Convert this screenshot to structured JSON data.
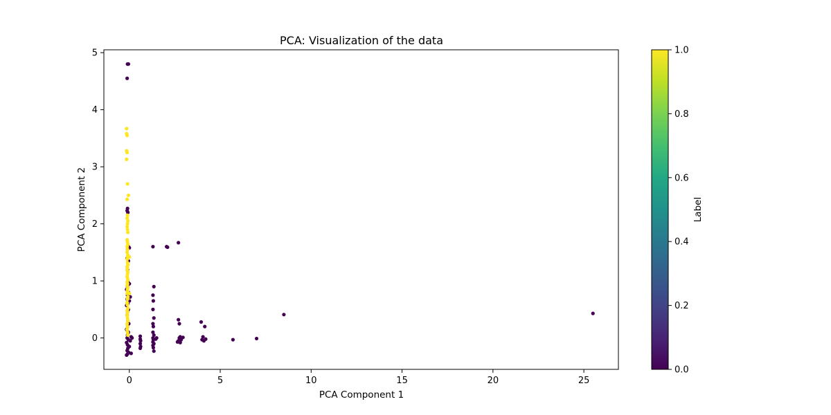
{
  "chart_data": {
    "type": "scatter",
    "title": "PCA: Visualization of the data",
    "xlabel": "PCA Component 1",
    "ylabel": "PCA Component 2",
    "xlim": [
      -1.4,
      26.9
    ],
    "ylim": [
      -0.55,
      5.05
    ],
    "xticks": [
      0,
      5,
      10,
      15,
      20,
      25
    ],
    "yticks": [
      0,
      1,
      2,
      3,
      4,
      5
    ],
    "grid": false,
    "colorbar": {
      "label": "Label",
      "range": [
        0.0,
        1.0
      ],
      "ticks": [
        "0.0",
        "0.2",
        "0.4",
        "0.6",
        "0.8",
        "1.0"
      ],
      "colormap": "viridis"
    },
    "series": [
      {
        "color": "#440154",
        "label_value": 0,
        "points": [
          [
            -0.1,
            4.8
          ],
          [
            -0.05,
            4.8
          ],
          [
            -0.12,
            4.55
          ],
          [
            -0.1,
            2.27
          ],
          [
            -0.12,
            2.23
          ],
          [
            -0.08,
            2.2
          ],
          [
            -0.05,
            1.6
          ],
          [
            0.0,
            1.58
          ],
          [
            -0.1,
            1.55
          ],
          [
            -0.12,
            1.4
          ],
          [
            -0.05,
            1.35
          ],
          [
            -0.1,
            1.2
          ],
          [
            -0.08,
            0.98
          ],
          [
            0.0,
            0.95
          ],
          [
            -0.1,
            0.9
          ],
          [
            -0.15,
            0.85
          ],
          [
            -0.05,
            0.8
          ],
          [
            -0.1,
            0.75
          ],
          [
            0.05,
            0.72
          ],
          [
            -0.12,
            0.68
          ],
          [
            0.0,
            0.65
          ],
          [
            -0.08,
            0.6
          ],
          [
            -0.15,
            0.57
          ],
          [
            -0.05,
            0.5
          ],
          [
            -0.1,
            0.45
          ],
          [
            -0.12,
            0.4
          ],
          [
            -0.08,
            0.3
          ],
          [
            -0.03,
            0.25
          ],
          [
            -0.1,
            0.2
          ],
          [
            -0.15,
            0.15
          ],
          [
            -0.05,
            0.1
          ],
          [
            -0.1,
            0.05
          ],
          [
            -0.12,
            0.0
          ],
          [
            -0.05,
            -0.03
          ],
          [
            0.05,
            -0.05
          ],
          [
            -0.15,
            -0.08
          ],
          [
            -0.1,
            -0.12
          ],
          [
            0.0,
            -0.15
          ],
          [
            -0.08,
            -0.18
          ],
          [
            -0.12,
            -0.22
          ],
          [
            -0.05,
            -0.25
          ],
          [
            -0.1,
            -0.28
          ],
          [
            -0.15,
            -0.3
          ],
          [
            0.1,
            -0.27
          ],
          [
            0.15,
            0.0
          ],
          [
            0.1,
            0.02
          ],
          [
            0.6,
            0.03
          ],
          [
            0.6,
            -0.02
          ],
          [
            0.62,
            -0.05
          ],
          [
            0.6,
            -0.1
          ],
          [
            0.62,
            -0.15
          ],
          [
            0.6,
            -0.18
          ],
          [
            1.3,
            1.6
          ],
          [
            1.35,
            0.9
          ],
          [
            1.3,
            0.75
          ],
          [
            1.32,
            0.65
          ],
          [
            1.3,
            0.5
          ],
          [
            1.35,
            0.35
          ],
          [
            1.3,
            0.25
          ],
          [
            1.32,
            0.2
          ],
          [
            1.3,
            0.1
          ],
          [
            1.35,
            0.05
          ],
          [
            1.3,
            0.0
          ],
          [
            1.32,
            -0.03
          ],
          [
            1.3,
            -0.07
          ],
          [
            1.35,
            -0.1
          ],
          [
            1.3,
            -0.13
          ],
          [
            1.32,
            -0.17
          ],
          [
            1.35,
            -0.23
          ],
          [
            1.45,
            -0.02
          ],
          [
            1.5,
            0.0
          ],
          [
            2.05,
            1.6
          ],
          [
            2.1,
            1.59
          ],
          [
            2.7,
            1.67
          ],
          [
            2.7,
            0.32
          ],
          [
            2.75,
            0.25
          ],
          [
            2.75,
            0.0
          ],
          [
            2.7,
            -0.05
          ],
          [
            2.8,
            -0.08
          ],
          [
            2.85,
            -0.03
          ],
          [
            2.65,
            -0.07
          ],
          [
            2.95,
            0.01
          ],
          [
            2.8,
            0.02
          ],
          [
            3.95,
            0.28
          ],
          [
            4.15,
            0.2
          ],
          [
            4.05,
            0.02
          ],
          [
            4.1,
            -0.05
          ],
          [
            4.2,
            -0.02
          ],
          [
            4.0,
            -0.03
          ],
          [
            5.7,
            -0.03
          ],
          [
            7.0,
            -0.01
          ],
          [
            8.5,
            0.41
          ],
          [
            25.5,
            0.43
          ]
        ]
      },
      {
        "color": "#fde725",
        "label_value": 1,
        "points": [
          [
            -0.15,
            3.67
          ],
          [
            -0.15,
            3.58
          ],
          [
            -0.12,
            3.55
          ],
          [
            -0.15,
            3.28
          ],
          [
            -0.12,
            3.25
          ],
          [
            -0.15,
            3.13
          ],
          [
            -0.1,
            2.7
          ],
          [
            -0.05,
            2.5
          ],
          [
            -0.12,
            2.43
          ],
          [
            -0.1,
            2.15
          ],
          [
            -0.12,
            2.1
          ],
          [
            -0.08,
            2.05
          ],
          [
            -0.1,
            2.0
          ],
          [
            -0.12,
            1.95
          ],
          [
            -0.1,
            1.9
          ],
          [
            -0.08,
            1.85
          ],
          [
            -0.12,
            1.72
          ],
          [
            -0.1,
            1.68
          ],
          [
            -0.08,
            1.64
          ],
          [
            -0.12,
            1.6
          ],
          [
            -0.1,
            1.55
          ],
          [
            -0.12,
            1.5
          ],
          [
            -0.08,
            1.45
          ],
          [
            -0.1,
            1.42
          ],
          [
            -0.12,
            1.38
          ],
          [
            -0.1,
            1.32
          ],
          [
            -0.08,
            1.28
          ],
          [
            -0.12,
            1.25
          ],
          [
            -0.1,
            1.22
          ],
          [
            -0.12,
            1.18
          ],
          [
            -0.08,
            1.15
          ],
          [
            -0.1,
            1.12
          ],
          [
            -0.12,
            1.08
          ],
          [
            -0.1,
            1.05
          ],
          [
            -0.08,
            1.02
          ],
          [
            -0.12,
            0.98
          ],
          [
            -0.1,
            0.95
          ],
          [
            -0.12,
            0.92
          ],
          [
            -0.08,
            0.88
          ],
          [
            -0.1,
            0.85
          ],
          [
            -0.1,
            0.82
          ],
          [
            -0.12,
            0.78
          ],
          [
            -0.08,
            0.72
          ],
          [
            -0.1,
            0.68
          ],
          [
            -0.12,
            0.62
          ],
          [
            -0.1,
            0.58
          ],
          [
            -0.08,
            0.52
          ],
          [
            -0.12,
            0.48
          ],
          [
            -0.1,
            0.45
          ],
          [
            -0.12,
            0.4
          ],
          [
            -0.1,
            0.35
          ],
          [
            -0.08,
            0.3
          ],
          [
            -0.12,
            0.25
          ],
          [
            -0.1,
            0.2
          ],
          [
            -0.12,
            0.15
          ],
          [
            -0.1,
            0.1
          ],
          [
            -0.08,
            0.05
          ],
          [
            0.0,
            0.78
          ],
          [
            0.0,
            1.42
          ]
        ]
      }
    ]
  }
}
